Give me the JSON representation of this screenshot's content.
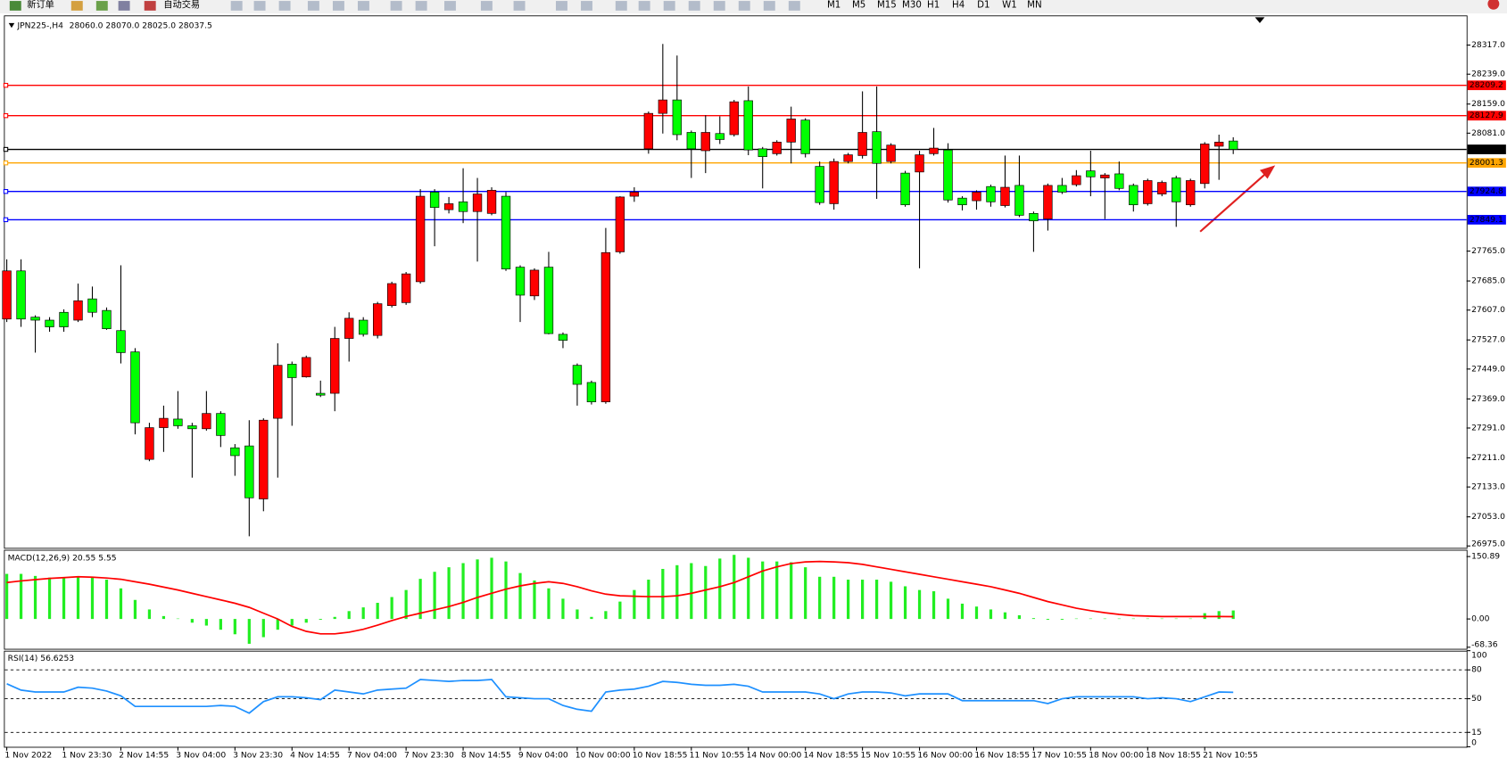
{
  "toolbar": {
    "buttons": [
      "新订单",
      "自动交易"
    ],
    "timeframes": [
      "M1",
      "M5",
      "M15",
      "M30",
      "H1",
      "H4",
      "D1",
      "W1",
      "MN"
    ]
  },
  "chart_data": [
    {
      "type": "candlestick",
      "title": "JPN225-,H4",
      "subtitle": "28060.0 28070.0 28025.0 28037.5",
      "categories": [
        "1 Nov 2022",
        null,
        null,
        null,
        "1 Nov 23:30",
        null,
        null,
        null,
        "2 Nov 14:55",
        null,
        null,
        null,
        "3 Nov 04:00",
        null,
        null,
        null,
        "3 Nov 23:30",
        null,
        null,
        null,
        "4 Nov 14:55",
        null,
        null,
        null,
        "7 Nov 04:00",
        null,
        null,
        null,
        "7 Nov 23:30",
        null,
        null,
        null,
        "8 Nov 14:55",
        null,
        null,
        null,
        "9 Nov 04:00",
        null,
        null,
        null,
        "10 Nov 00:00",
        null,
        null,
        null,
        "10 Nov 18:55",
        null,
        null,
        null,
        "11 Nov 10:55",
        null,
        null,
        null,
        "14 Nov 00:00",
        null,
        null,
        null,
        "14 Nov 18:55",
        null,
        null,
        null,
        "15 Nov 10:55",
        null,
        null,
        null,
        "16 Nov 00:00",
        null,
        null,
        null,
        "16 Nov 18:55",
        null,
        null,
        null,
        "17 Nov 10:55",
        null,
        null,
        null,
        "18 Nov 00:00",
        null,
        null,
        null,
        "18 Nov 18:55",
        null,
        null,
        null,
        "21 Nov 10:55",
        null,
        null
      ],
      "open": [
        27583,
        27712,
        27588,
        27580,
        27601,
        27580,
        27637,
        27606,
        27552,
        27495,
        27207,
        27292,
        27315,
        27297,
        27289,
        27330,
        27238,
        27243,
        27101,
        27317,
        27462,
        27428,
        27384,
        27384,
        27531,
        27580,
        27539,
        27619,
        27627,
        27683,
        27923,
        27876,
        27897,
        27871,
        27866,
        27912,
        27722,
        27645,
        27722,
        27542,
        27459,
        27413,
        27361,
        27763,
        27912,
        28039,
        28134,
        28170,
        28083,
        28034,
        28080,
        28077,
        28168,
        28039,
        28026,
        28057,
        28116,
        27992,
        27892,
        28005,
        28021,
        28085,
        28005,
        27974,
        27977,
        28026,
        28036,
        27907,
        27900,
        27938,
        27887,
        27941,
        27866,
        27851,
        27941,
        27943,
        27980,
        27961,
        27972,
        27941,
        27892,
        27918,
        27961,
        27889,
        27946,
        28046,
        28060
      ],
      "high": [
        27743,
        27743,
        27593,
        27588,
        27609,
        27678,
        27670,
        27614,
        27727,
        27505,
        27305,
        27351,
        27390,
        27305,
        27390,
        27336,
        27248,
        27312,
        27317,
        27518,
        27469,
        27485,
        27418,
        27562,
        27601,
        27588,
        27629,
        27683,
        27709,
        27931,
        27931,
        27910,
        27987,
        27961,
        27936,
        27923,
        27727,
        27719,
        27763,
        27547,
        27464,
        27418,
        27827,
        27912,
        27936,
        28139,
        28320,
        28289,
        28088,
        28129,
        28126,
        28170,
        28206,
        28044,
        28062,
        28152,
        28121,
        28005,
        28013,
        28028,
        28193,
        28206,
        28054,
        27980,
        28034,
        28095,
        28054,
        27912,
        27928,
        27943,
        28021,
        28021,
        27871,
        27946,
        27961,
        27982,
        28034,
        27974,
        28005,
        27946,
        27959,
        27954,
        27967,
        27959,
        28057,
        28077,
        28070
      ],
      "low": [
        27575,
        27562,
        27493,
        27549,
        27549,
        27575,
        27588,
        27554,
        27464,
        27274,
        27202,
        27227,
        27289,
        27158,
        27284,
        27240,
        27163,
        27001,
        27068,
        27158,
        27297,
        27426,
        27374,
        27336,
        27469,
        27536,
        27531,
        27614,
        27621,
        27678,
        27778,
        27866,
        27840,
        27737,
        27861,
        27712,
        27575,
        27634,
        27542,
        27505,
        27351,
        27354,
        27356,
        27758,
        27897,
        28026,
        28080,
        28062,
        27961,
        27974,
        28052,
        28072,
        28022,
        27933,
        28021,
        28000,
        28016,
        27889,
        27876,
        28000,
        28013,
        27905,
        28000,
        27884,
        27719,
        28021,
        27895,
        27874,
        27876,
        27884,
        27882,
        27856,
        27763,
        27820,
        27918,
        27938,
        27912,
        27851,
        27928,
        27871,
        27887,
        27912,
        27830,
        27884,
        27933,
        27956,
        28025
      ],
      "close": [
        27712,
        27583,
        27580,
        27562,
        27562,
        27632,
        27601,
        27557,
        27493,
        27305,
        27292,
        27317,
        27297,
        27289,
        27330,
        27271,
        27217,
        27104,
        27312,
        27459,
        27426,
        27480,
        27379,
        27531,
        27585,
        27542,
        27624,
        27678,
        27704,
        27912,
        27882,
        27892,
        27871,
        27918,
        27928,
        27717,
        27647,
        27714,
        27544,
        27526,
        27408,
        27361,
        27761,
        27910,
        27923,
        28134,
        28170,
        28077,
        28039,
        28083,
        28064,
        28165,
        28036,
        28018,
        28057,
        28119,
        28026,
        27895,
        28005,
        28023,
        28083,
        28000,
        28049,
        27889,
        28023,
        28041,
        27902,
        27889,
        27923,
        27897,
        27936,
        27861,
        27846,
        27941,
        27923,
        27967,
        27964,
        27969,
        27933,
        27889,
        27954,
        27949,
        27897,
        27954,
        28052,
        28057,
        28037.5
      ],
      "up_color": "#ff0000",
      "down_color": "#00ff00",
      "ylim": [
        26970,
        28394
      ],
      "yticks": [
        {
          "value": 28317,
          "label": "28317.0"
        },
        {
          "value": 28239,
          "label": "28239.0"
        },
        {
          "value": 28159,
          "label": "28159.0"
        },
        {
          "value": 28081,
          "label": "28081.0"
        },
        {
          "value": 27765,
          "label": "27765.0"
        },
        {
          "value": 27685,
          "label": "27685.0"
        },
        {
          "value": 27607,
          "label": "27607.0"
        },
        {
          "value": 27527,
          "label": "27527.0"
        },
        {
          "value": 27449,
          "label": "27449.0"
        },
        {
          "value": 27369,
          "label": "27369.0"
        },
        {
          "value": 27291,
          "label": "27291.0"
        },
        {
          "value": 27211,
          "label": "27211.0"
        },
        {
          "value": 27133,
          "label": "27133.0"
        },
        {
          "value": 27053,
          "label": "27053.0"
        },
        {
          "value": 26975,
          "label": "26975.0"
        }
      ],
      "levels": [
        {
          "value": 28209.2,
          "color": "#ff0000"
        },
        {
          "value": 28127.9,
          "color": "#ff0000"
        },
        {
          "value": 28037.5,
          "color": "#000000"
        },
        {
          "value": 28001.3,
          "color": "#ffa500"
        },
        {
          "value": 27924.8,
          "color": "#0000ff"
        },
        {
          "value": 27849.1,
          "color": "#0000ff"
        }
      ]
    },
    {
      "type": "indicator",
      "title": "MACD(12,26,9) 20.55 5.55",
      "series": [
        {
          "type": "bar",
          "color": "#22ee22",
          "values": [
            109,
            109,
            104,
            100,
            100,
            102,
            102,
            95,
            74,
            46,
            23,
            7,
            1,
            -9,
            -16,
            -26,
            -37,
            -60,
            -44,
            -26,
            -16,
            -9,
            -2,
            5,
            19,
            28,
            39,
            53,
            70,
            97,
            114,
            125,
            135,
            144,
            148,
            139,
            111,
            93,
            74,
            49,
            23,
            5,
            19,
            42,
            70,
            95,
            121,
            130,
            135,
            128,
            146,
            155,
            148,
            139,
            139,
            137,
            125,
            102,
            102,
            95,
            95,
            95,
            90,
            79,
            70,
            67,
            49,
            37,
            30,
            23,
            16,
            9,
            2,
            -2,
            -2,
            1,
            1,
            1,
            1,
            1,
            1,
            1,
            1,
            1,
            14,
            19,
            20.55
          ]
        },
        {
          "type": "line",
          "color": "#ff0000",
          "values": [
            88,
            92,
            95,
            98,
            100,
            102,
            101,
            99,
            96,
            90,
            84,
            77,
            70,
            62,
            54,
            46,
            38,
            28,
            14,
            0,
            -18,
            -30,
            -36,
            -36,
            -32,
            -25,
            -15,
            -4,
            6,
            14,
            22,
            30,
            40,
            52,
            62,
            72,
            80,
            86,
            90,
            86,
            78,
            68,
            60,
            56,
            55,
            54,
            54,
            56,
            62,
            70,
            78,
            88,
            102,
            116,
            126,
            134,
            138,
            139,
            138,
            136,
            132,
            126,
            120,
            114,
            108,
            102,
            96,
            90,
            84,
            78,
            70,
            62,
            52,
            42,
            34,
            26,
            20,
            15,
            11,
            8,
            7,
            6,
            6,
            6,
            6,
            6,
            5.55
          ]
        }
      ],
      "ylim": [
        -72,
        165
      ],
      "yticks": [
        150.89,
        {
          "value": 0,
          "label": "0.00"
        },
        -68.36
      ]
    },
    {
      "type": "indicator",
      "title": "RSI(14) 56.6253",
      "series": [
        {
          "type": "line",
          "color": "#1e90ff",
          "values": [
            65.5,
            59,
            57,
            57,
            57,
            62,
            61,
            58,
            53,
            42,
            42,
            42,
            42,
            42,
            42,
            43,
            42,
            35,
            47,
            52,
            52,
            51,
            49,
            59,
            57,
            55,
            59,
            60,
            61,
            70,
            69,
            68,
            69,
            69,
            70,
            52,
            51,
            50,
            50,
            43,
            39,
            37,
            57,
            59,
            60,
            63,
            68,
            67,
            65,
            64,
            64,
            65,
            63,
            57,
            57,
            57,
            57,
            55,
            50,
            55,
            57,
            57,
            56,
            53,
            55,
            55,
            55,
            48,
            48,
            48,
            48,
            48,
            48,
            45,
            50,
            52,
            52,
            52,
            52,
            52,
            50,
            51,
            50,
            47,
            52,
            57,
            56.6253
          ]
        }
      ],
      "ylim": [
        0,
        100
      ],
      "yticks": [
        100,
        80,
        50,
        15,
        0
      ],
      "levels": [
        80,
        50,
        15
      ]
    }
  ]
}
